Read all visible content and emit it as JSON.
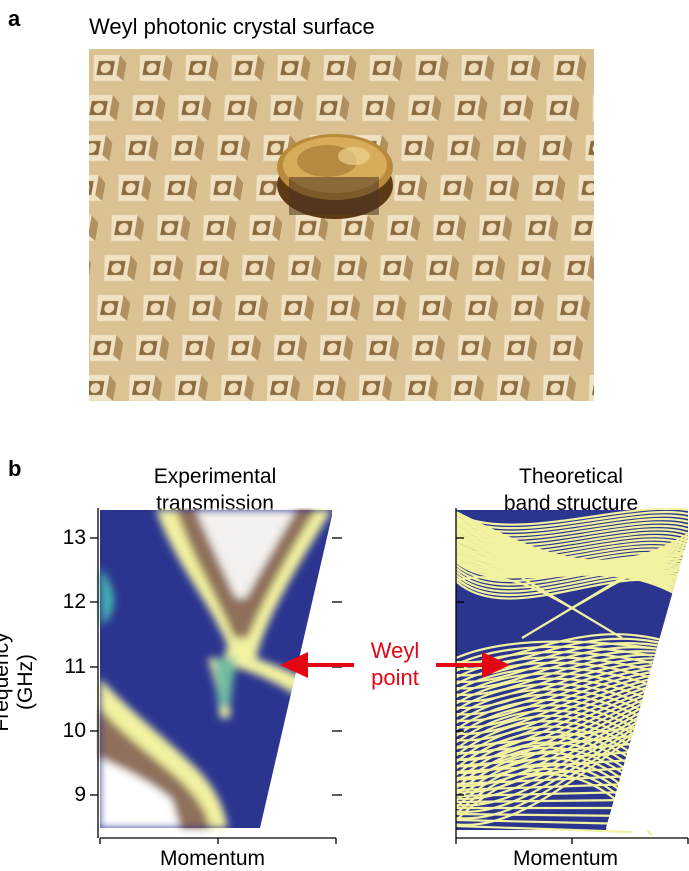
{
  "panel_a": {
    "letter": "a",
    "title": "Weyl photonic crystal surface"
  },
  "panel_b": {
    "letter": "b",
    "left_title_line1": "Experimental",
    "left_title_line2": "transmission",
    "right_title_line1": "Theoretical",
    "right_title_line2": "band structure",
    "ylabel": "Frequency (GHz)",
    "xlabel_left": "Momentum",
    "xlabel_right": "Momentum",
    "annotation_line1": "Weyl",
    "annotation_line2": "point",
    "yticks": [
      "13",
      "12",
      "11",
      "10",
      "9"
    ]
  },
  "colors": {
    "weyl_red": "#e30613",
    "map_navy": "#2b3590",
    "band_yellow": "#f2f2a0"
  },
  "chart_data": [
    {
      "type": "heatmap",
      "title": "Experimental transmission",
      "xlabel": "Momentum",
      "ylabel": "Frequency (GHz)",
      "ylim": [
        8.5,
        13.5
      ],
      "yticks": [
        9,
        10,
        11,
        12,
        13
      ],
      "annotation": "Weyl point",
      "weyl_point_frequency": 11.2
    },
    {
      "type": "line",
      "title": "Theoretical band structure",
      "xlabel": "Momentum",
      "ylabel": "Frequency (GHz)",
      "ylim": [
        8.5,
        13.5
      ],
      "yticks": [
        9,
        10,
        11,
        12,
        13
      ],
      "annotation": "Weyl point",
      "weyl_point_frequency": 11.2
    }
  ]
}
